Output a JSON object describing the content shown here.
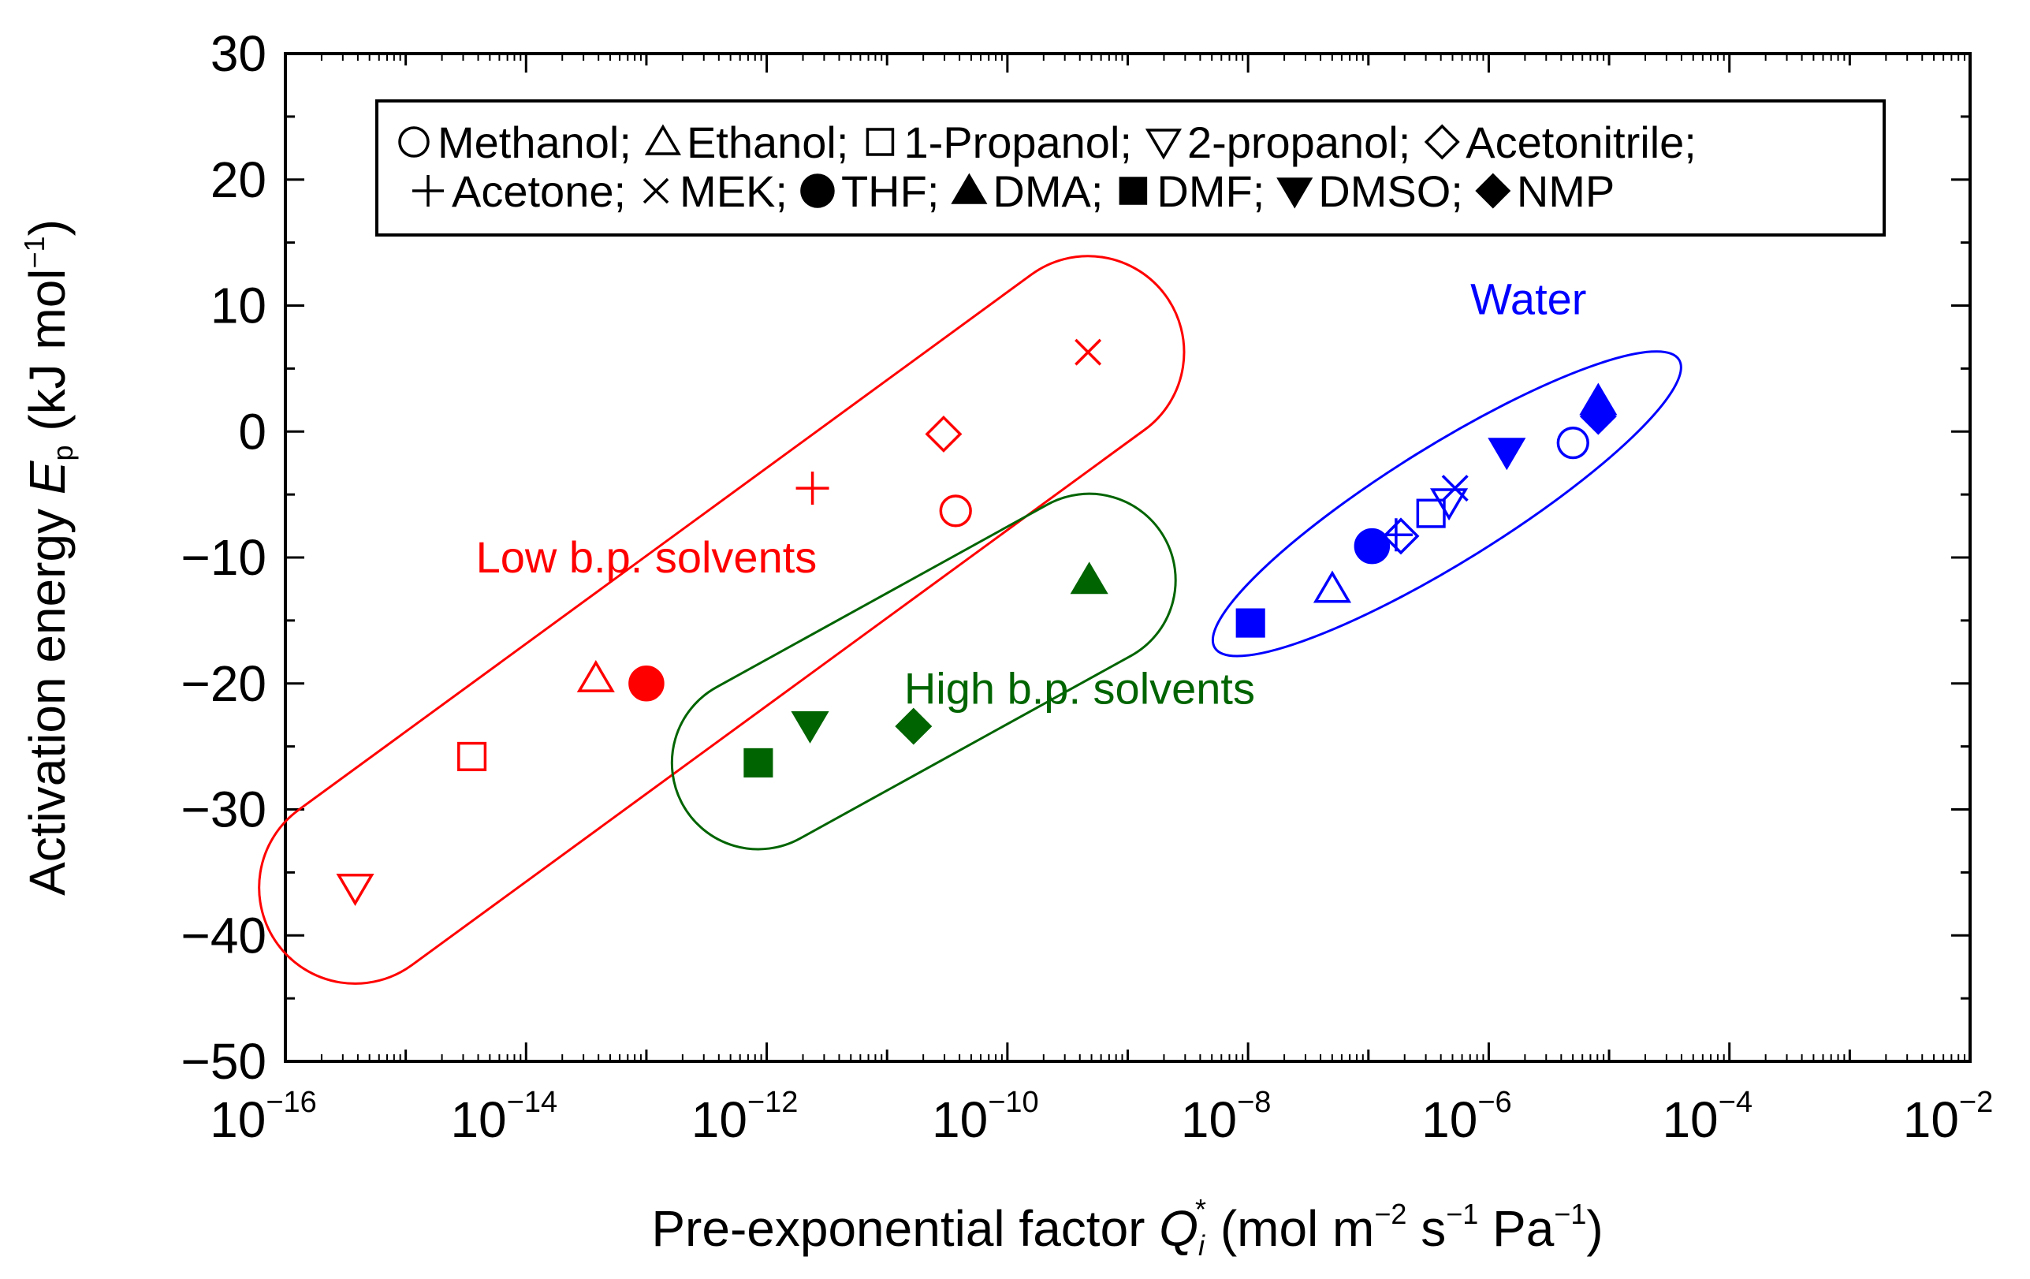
{
  "chart_data": {
    "type": "scatter",
    "x_scale": "log10",
    "xlim_exp": [
      -16,
      -2
    ],
    "ylim": [
      -50,
      30
    ],
    "grid": false,
    "xlabel": {
      "main": "Pre-exponential factor ",
      "var": "Q",
      "var_sub": "i",
      "var_sup": "*",
      "units_open": " (mol m",
      "e1": "−2",
      "s": " s",
      "e2": "−1",
      "pa": " Pa",
      "e3": "−1",
      "close": ")"
    },
    "ylabel": {
      "main": "Activation energy ",
      "var": "E",
      "var_sub": "p",
      "units_open": " (kJ mol",
      "e1": "−1",
      "close": ")"
    },
    "x_tick_exponents": [
      -16,
      -14,
      -12,
      -10,
      -8,
      -6,
      -4,
      -2
    ],
    "x_tick_base": "10",
    "x_tick_exp_labels": [
      "−16",
      "−14",
      "−12",
      "−10",
      "−8",
      "−6",
      "−4",
      "−2"
    ],
    "y_ticks": [
      30,
      20,
      10,
      0,
      -10,
      -20,
      -30,
      -40,
      -50
    ],
    "y_tick_labels": [
      "30",
      "20",
      "10",
      "0",
      "−10",
      "−20",
      "−30",
      "−40",
      "−50"
    ],
    "legend": {
      "placement": "top",
      "row1": [
        {
          "marker": "circle-open",
          "text": "Methanol;"
        },
        {
          "marker": "triangle-open",
          "text": "Ethanol;"
        },
        {
          "marker": "square-open",
          "text": "1-Propanol;"
        },
        {
          "marker": "triangle-down-open",
          "text": "2-propanol;"
        },
        {
          "marker": "diamond-open",
          "text": "Acetonitrile;"
        }
      ],
      "row2": [
        {
          "marker": "plus",
          "text": "Acetone;"
        },
        {
          "marker": "cross",
          "text": "MEK;"
        },
        {
          "marker": "circle-filled",
          "text": "THF;"
        },
        {
          "marker": "triangle-filled",
          "text": "DMA;"
        },
        {
          "marker": "square-filled",
          "text": "DMF;"
        },
        {
          "marker": "triangle-down-filled",
          "text": "DMSO;"
        },
        {
          "marker": "diamond-filled",
          "text": "NMP"
        }
      ]
    },
    "groups": [
      {
        "name": "Low b.p. solvents",
        "color": "#ff0000",
        "label": "Low b.p. solvents",
        "label_pos": {
          "log_x": -13.0,
          "y": -11.2
        },
        "points": [
          {
            "solvent": "2-propanol",
            "marker": "triangle-down-open",
            "log_x": -15.42,
            "y": -36.2
          },
          {
            "solvent": "1-Propanol",
            "marker": "square-open",
            "log_x": -14.45,
            "y": -25.8
          },
          {
            "solvent": "Ethanol",
            "marker": "triangle-open",
            "log_x": -13.42,
            "y": -19.6
          },
          {
            "solvent": "THF",
            "marker": "circle-filled",
            "log_x": -13.0,
            "y": -20.0
          },
          {
            "solvent": "Acetone",
            "marker": "plus",
            "log_x": -11.62,
            "y": -4.5
          },
          {
            "solvent": "Methanol",
            "marker": "circle-open",
            "log_x": -10.43,
            "y": -6.3
          },
          {
            "solvent": "Acetonitrile",
            "marker": "diamond-open",
            "log_x": -10.53,
            "y": -0.2
          },
          {
            "solvent": "MEK",
            "marker": "cross",
            "log_x": -9.33,
            "y": 6.3
          }
        ]
      },
      {
        "name": "High b.p. solvents",
        "color": "#006400",
        "label": "High b.p. solvents",
        "label_pos": {
          "log_x": -9.4,
          "y": -21.6
        },
        "points": [
          {
            "solvent": "DMF",
            "marker": "square-filled",
            "log_x": -12.07,
            "y": -26.3
          },
          {
            "solvent": "DMSO",
            "marker": "triangle-down-filled",
            "log_x": -11.64,
            "y": -23.3
          },
          {
            "solvent": "NMP",
            "marker": "diamond-filled",
            "log_x": -10.78,
            "y": -23.4
          },
          {
            "solvent": "DMA",
            "marker": "triangle-filled",
            "log_x": -9.32,
            "y": -11.8
          }
        ]
      },
      {
        "name": "Water",
        "color": "#0000ff",
        "label": "Water",
        "label_pos": {
          "log_x": -5.67,
          "y": 9.3
        },
        "points": [
          {
            "solvent": "DMF",
            "marker": "square-filled",
            "log_x": -7.98,
            "y": -15.2
          },
          {
            "solvent": "Ethanol",
            "marker": "triangle-open",
            "log_x": -7.3,
            "y": -12.5
          },
          {
            "solvent": "THF",
            "marker": "circle-filled",
            "log_x": -6.97,
            "y": -9.1
          },
          {
            "solvent": "Acetone",
            "marker": "plus",
            "log_x": -6.77,
            "y": -8.2
          },
          {
            "solvent": "Acetonitrile",
            "marker": "diamond-open",
            "log_x": -6.73,
            "y": -8.3
          },
          {
            "solvent": "1-Propanol",
            "marker": "square-open",
            "log_x": -6.48,
            "y": -6.5
          },
          {
            "solvent": "2-propanol",
            "marker": "triangle-down-open",
            "log_x": -6.33,
            "y": -5.6
          },
          {
            "solvent": "MEK",
            "marker": "cross",
            "log_x": -6.28,
            "y": -4.5
          },
          {
            "solvent": "DMSO",
            "marker": "triangle-down-filled",
            "log_x": -5.85,
            "y": -1.6
          },
          {
            "solvent": "Methanol",
            "marker": "circle-open",
            "log_x": -5.3,
            "y": -0.9
          },
          {
            "solvent": "DMA",
            "marker": "triangle-filled",
            "log_x": -5.09,
            "y": 2.4
          },
          {
            "solvent": "NMP",
            "marker": "diamond-filled",
            "log_x": -5.09,
            "y": 1.2
          }
        ]
      }
    ]
  }
}
